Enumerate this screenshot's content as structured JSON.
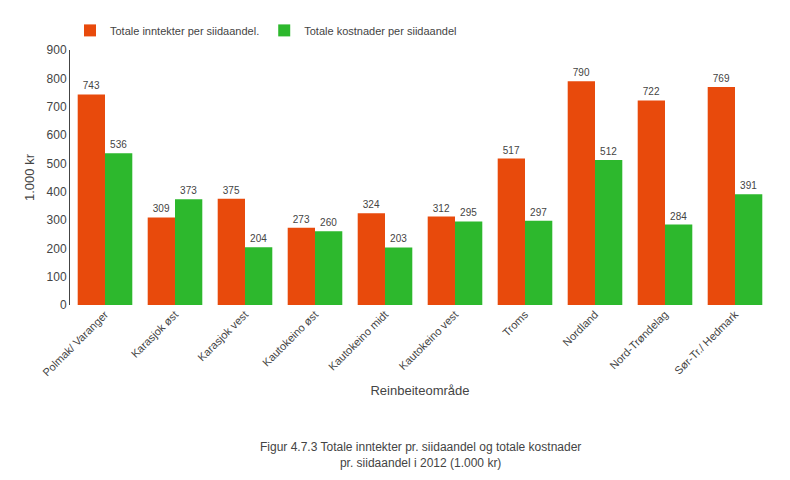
{
  "chart_data": {
    "type": "bar",
    "categories": [
      "Polmak/ Varanger",
      "Karasjok øst",
      "Karasjok vest",
      "Kautokeino øst",
      "Kautokeino midt",
      "Kautokeino vest",
      "Troms",
      "Nordland",
      "Nord-Trøndelag",
      "Sør-Tr./ Hedmark"
    ],
    "series": [
      {
        "name": "Totale inntekter per siidaandel.",
        "color": "#E84A0C",
        "values": [
          743,
          309,
          375,
          273,
          324,
          312,
          517,
          790,
          722,
          769
        ]
      },
      {
        "name": "Totale kostnader per siidaandel",
        "color": "#2DB82D",
        "values": [
          536,
          373,
          204,
          260,
          203,
          295,
          297,
          512,
          284,
          391
        ]
      }
    ],
    "xlabel": "Reinbeiteområde",
    "ylabel": "1.000 kr",
    "caption": "Figur 4.7.3 Totale inntekter pr. siidaandel og totale kostnader\npr. siidaandel i 2012 (1.000 kr)",
    "ylim": [
      0,
      900
    ],
    "yticks": [
      0,
      100,
      200,
      300,
      400,
      500,
      600,
      700,
      800,
      900
    ],
    "grid": false,
    "legend": "top",
    "data_labels": true
  }
}
